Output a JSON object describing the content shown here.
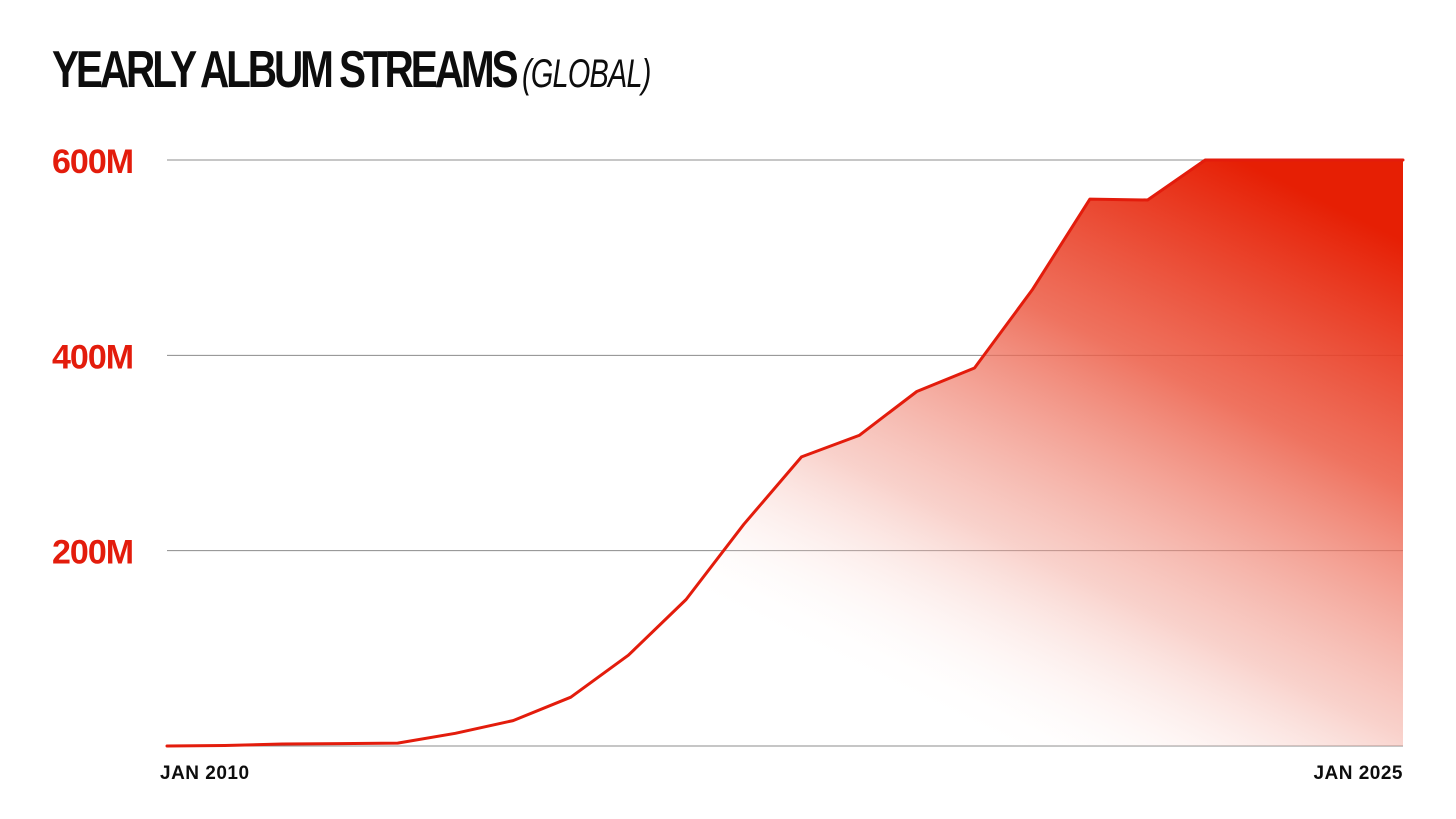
{
  "chart_data": {
    "type": "area",
    "title": "YEARLY ALBUM STREAMS",
    "subtitle": "(GLOBAL)",
    "xlabel": "",
    "ylabel": "",
    "x_tick_labels": [
      "JAN 2010",
      "JAN 2025"
    ],
    "y_tick_labels": [
      "600M",
      "400M",
      "200M"
    ],
    "y_ticks": [
      600,
      400,
      200
    ],
    "ylim": [
      0,
      600
    ],
    "xlim": [
      2010,
      2025
    ],
    "grid": true,
    "legend": "none",
    "color": "#e31c0c",
    "series": [
      {
        "x": [
          2010,
          2010.7,
          2011.4,
          2012.1,
          2012.8,
          2013.5,
          2014.2,
          2014.9,
          2015.6,
          2016.3,
          2017.0,
          2017.7,
          2018.4,
          2019.1,
          2019.8,
          2020.5,
          2021.2,
          2021.9,
          2022.6,
          2023.3,
          2024.0,
          2024.7,
          2025
        ],
        "values": [
          0,
          0.5,
          2,
          2.5,
          3,
          13,
          26,
          50,
          93,
          150,
          227,
          296,
          318,
          363,
          387,
          467,
          560,
          559,
          600,
          600,
          600,
          600,
          600
        ]
      }
    ]
  }
}
